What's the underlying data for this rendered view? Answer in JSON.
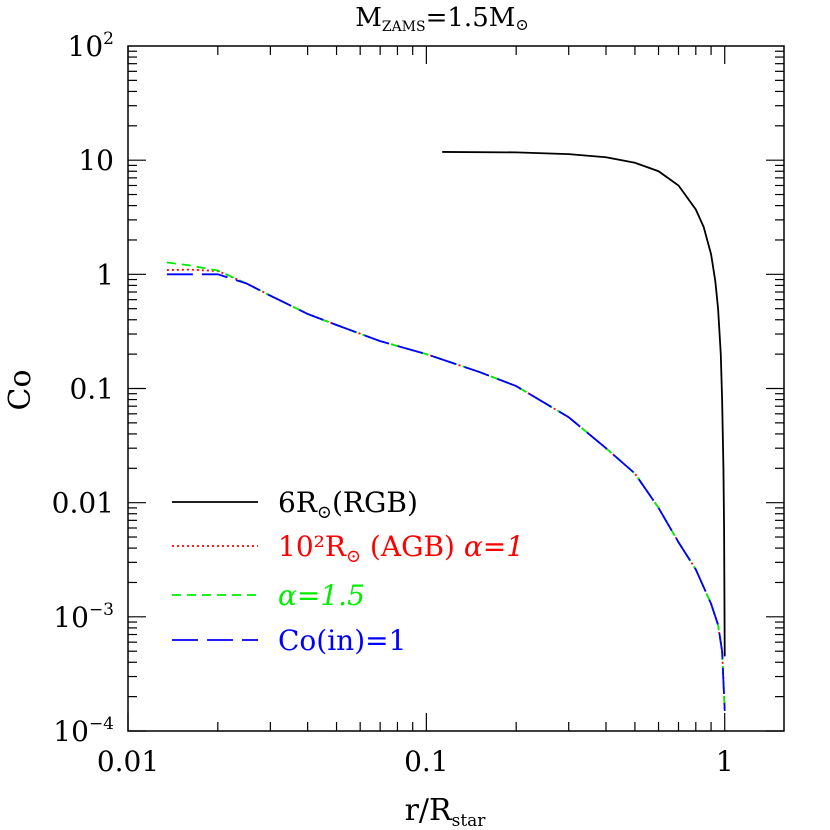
{
  "chart_data": {
    "type": "line",
    "title": {
      "main": "M",
      "sub": "ZAMS",
      "eq": "=1.5M",
      "sun": "⊙"
    },
    "xlabel": {
      "main": "r/R",
      "sub": "star"
    },
    "ylabel": "Co",
    "x_scale": "log",
    "y_scale": "log",
    "xlim": [
      0.01,
      1.58
    ],
    "ylim": [
      0.0001,
      100
    ],
    "x_ticks": [
      {
        "value": 0.01,
        "label": "0.01"
      },
      {
        "value": 0.1,
        "label": "0.1"
      },
      {
        "value": 1,
        "label": "1"
      }
    ],
    "y_ticks": [
      {
        "value": 0.0001,
        "base": "10",
        "exp": "−4"
      },
      {
        "value": 0.001,
        "base": "10",
        "exp": "−3"
      },
      {
        "value": 0.01,
        "base": "0.01",
        "exp": ""
      },
      {
        "value": 0.1,
        "base": "0.1",
        "exp": ""
      },
      {
        "value": 1,
        "base": "1",
        "exp": ""
      },
      {
        "value": 10,
        "base": "10",
        "exp": ""
      },
      {
        "value": 100,
        "base": "10",
        "exp": "2"
      }
    ],
    "legend_position": "lower-left",
    "series": [
      {
        "label": {
          "pre": "6R",
          "sun": "⊙",
          "post": "(RGB)",
          "alpha": ""
        },
        "color": "#000000",
        "dash": "solid",
        "x": [
          0.113,
          0.2,
          0.3,
          0.4,
          0.5,
          0.6,
          0.7,
          0.8,
          0.85,
          0.9,
          0.93,
          0.95,
          0.97,
          0.98,
          0.99,
          0.995,
          1.0
        ],
        "y": [
          11.8,
          11.7,
          11.3,
          10.6,
          9.5,
          8.0,
          6.0,
          3.7,
          2.6,
          1.5,
          0.87,
          0.5,
          0.2,
          0.08,
          0.02,
          0.006,
          0.00045
        ]
      },
      {
        "label": {
          "pre": "10²R",
          "sun": "⊙",
          "post": " (AGB)  ",
          "alpha": "α=1"
        },
        "color": "#ff0000",
        "dash": "dotted",
        "x": [
          0.0135,
          0.016,
          0.02,
          0.025,
          0.03,
          0.04,
          0.05,
          0.07,
          0.1,
          0.15,
          0.2,
          0.3,
          0.4,
          0.5,
          0.6,
          0.7,
          0.8,
          0.9,
          0.95,
          0.98,
          1.0
        ],
        "y": [
          1.09,
          1.1,
          1.07,
          0.83,
          0.65,
          0.45,
          0.36,
          0.26,
          0.2,
          0.14,
          0.105,
          0.056,
          0.03,
          0.018,
          0.009,
          0.0045,
          0.0026,
          0.0013,
          0.00085,
          0.0005,
          0.00015
        ]
      },
      {
        "label": {
          "pre": "",
          "sun": "",
          "post": "",
          "alpha": "α=1.5"
        },
        "color": "#00ee00",
        "dash": "dashed",
        "x": [
          0.0135,
          0.016,
          0.02,
          0.025,
          0.03,
          0.04,
          0.05,
          0.07,
          0.1,
          0.15,
          0.2,
          0.3,
          0.4,
          0.5,
          0.6,
          0.7,
          0.8,
          0.9,
          0.95,
          0.98,
          1.0
        ],
        "y": [
          1.27,
          1.2,
          1.08,
          0.83,
          0.65,
          0.45,
          0.36,
          0.26,
          0.2,
          0.14,
          0.105,
          0.056,
          0.03,
          0.018,
          0.009,
          0.0045,
          0.0026,
          0.0013,
          0.00085,
          0.0005,
          0.00015
        ]
      },
      {
        "label": {
          "pre": "Co(in)=1",
          "sun": "",
          "post": "",
          "alpha": ""
        },
        "color": "#0000ff",
        "dash": "longdash",
        "x": [
          0.0135,
          0.016,
          0.02,
          0.025,
          0.03,
          0.04,
          0.05,
          0.07,
          0.1,
          0.15,
          0.2,
          0.3,
          0.4,
          0.5,
          0.6,
          0.7,
          0.8,
          0.9,
          0.95,
          0.98,
          1.0
        ],
        "y": [
          1.0,
          1.0,
          1.0,
          0.83,
          0.65,
          0.45,
          0.36,
          0.26,
          0.2,
          0.14,
          0.105,
          0.056,
          0.03,
          0.018,
          0.009,
          0.0045,
          0.0026,
          0.0013,
          0.00085,
          0.0005,
          0.00015
        ]
      }
    ]
  }
}
